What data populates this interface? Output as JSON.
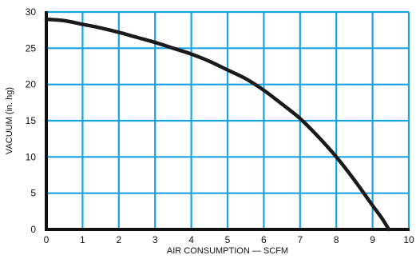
{
  "chart_data": {
    "type": "line",
    "title": "",
    "xlabel": "AIR CONSUMPTION — SCFM",
    "ylabel": "VACUUM (in. hg)",
    "xlim": [
      0,
      10
    ],
    "ylim": [
      0,
      30
    ],
    "x_ticks": [
      "0",
      "1",
      "2",
      "3",
      "4",
      "5",
      "6",
      "7",
      "8",
      "9",
      "10"
    ],
    "y_ticks": [
      "0",
      "5",
      "10",
      "15",
      "20",
      "25",
      "30"
    ],
    "grid": true,
    "series": [
      {
        "x": [
          0,
          0.5,
          1,
          1.5,
          2,
          2.5,
          3,
          3.5,
          4,
          4.5,
          5,
          5.5,
          6,
          6.5,
          7,
          7.5,
          8,
          8.5,
          9,
          9.25,
          9.45
        ],
        "y": [
          29.0,
          28.8,
          28.3,
          27.8,
          27.2,
          26.5,
          25.8,
          25.0,
          24.2,
          23.2,
          22.0,
          20.8,
          19.2,
          17.3,
          15.3,
          12.8,
          10.0,
          6.8,
          3.3,
          1.6,
          0
        ]
      }
    ],
    "colors": {
      "grid": "#1aa3e0",
      "axis": "#111111",
      "curve": "#1a1a1a"
    }
  }
}
